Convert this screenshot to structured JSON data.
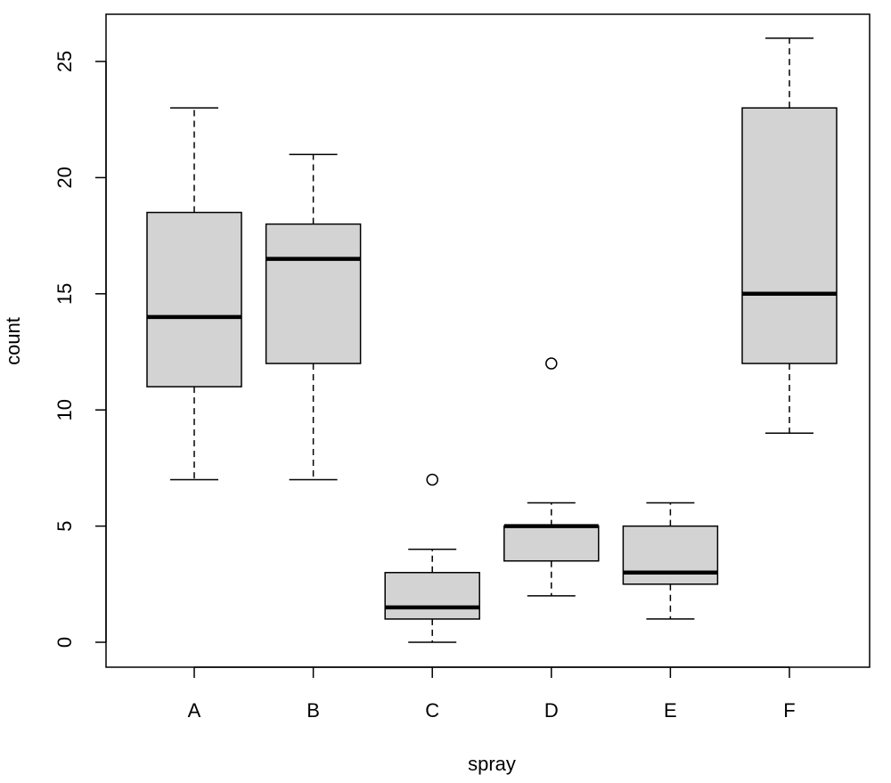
{
  "chart_data": {
    "type": "boxplot",
    "title": "",
    "xlabel": "spray",
    "ylabel": "count",
    "ylim": [
      -1,
      27
    ],
    "yticks": [
      0,
      5,
      10,
      15,
      20,
      25
    ],
    "grid": false,
    "box_fill": "#d3d3d3",
    "line_color": "#000000",
    "categories": [
      "A",
      "B",
      "C",
      "D",
      "E",
      "F"
    ],
    "boxes": [
      {
        "category": "A",
        "whisker_low": 7,
        "q1": 11,
        "median": 14,
        "q3": 18.5,
        "whisker_high": 23,
        "outliers": []
      },
      {
        "category": "B",
        "whisker_low": 7,
        "q1": 12,
        "median": 16.5,
        "q3": 18,
        "whisker_high": 21,
        "outliers": []
      },
      {
        "category": "C",
        "whisker_low": 0,
        "q1": 1,
        "median": 1.5,
        "q3": 3,
        "whisker_high": 4,
        "outliers": [
          7
        ]
      },
      {
        "category": "D",
        "whisker_low": 2,
        "q1": 3.5,
        "median": 5,
        "q3": 5,
        "whisker_high": 6,
        "outliers": [
          12
        ]
      },
      {
        "category": "E",
        "whisker_low": 1,
        "q1": 2.5,
        "median": 3,
        "q3": 5,
        "whisker_high": 6,
        "outliers": []
      },
      {
        "category": "F",
        "whisker_low": 9,
        "q1": 12,
        "median": 15,
        "q3": 23,
        "whisker_high": 26,
        "outliers": []
      }
    ]
  }
}
